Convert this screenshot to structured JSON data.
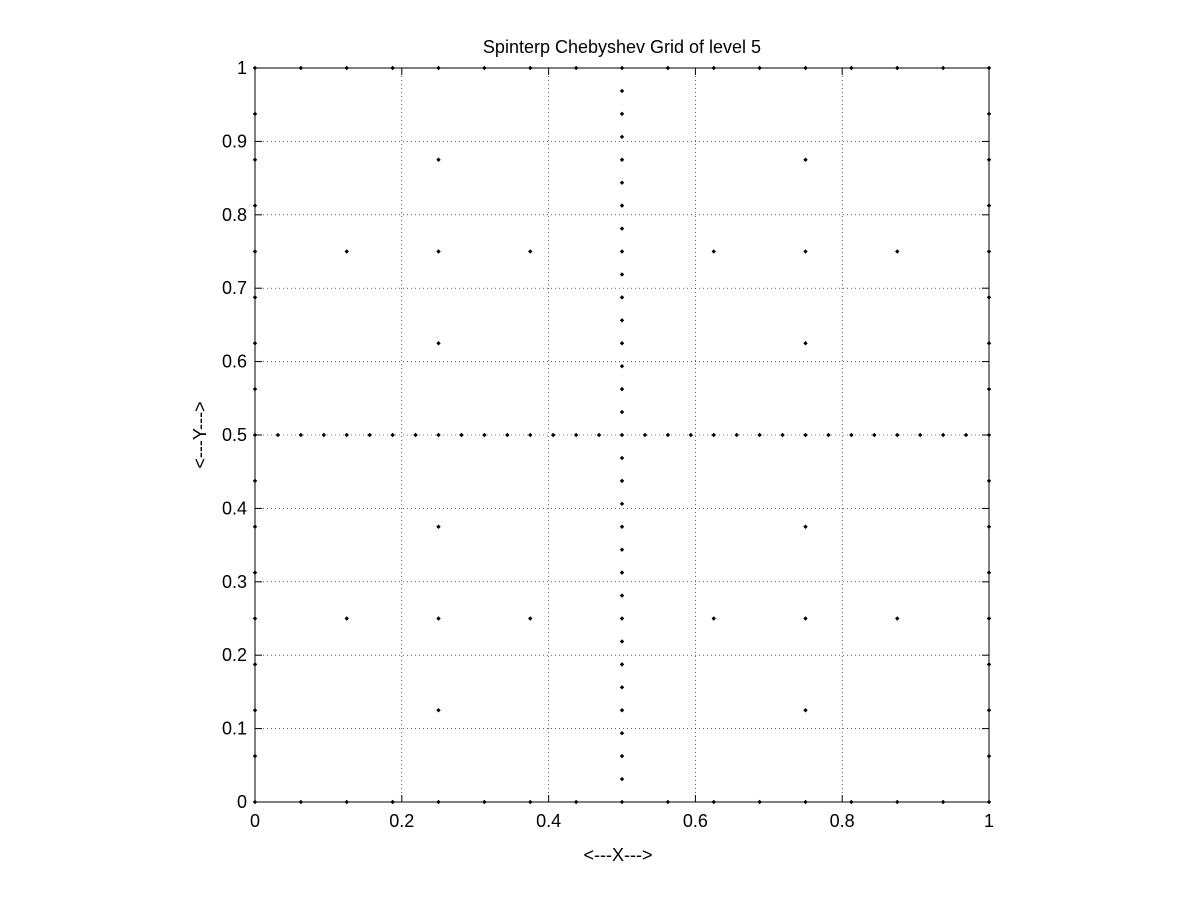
{
  "chart_data": {
    "type": "scatter",
    "title": "Spinterp Chebyshev Grid of level 5",
    "xlabel": "<---X--->",
    "ylabel": "<---Y--->",
    "xlim": [
      0,
      1
    ],
    "ylim": [
      0,
      1
    ],
    "grid": true,
    "grid_style": "dotted",
    "x_ticks": [
      0,
      0.2,
      0.4,
      0.6,
      0.8,
      1
    ],
    "x_tick_labels": [
      "0",
      "0.2",
      "0.4",
      "0.6",
      "0.8",
      "1"
    ],
    "y_ticks": [
      0,
      0.1,
      0.2,
      0.3,
      0.4,
      0.5,
      0.6,
      0.7,
      0.8,
      0.9,
      1
    ],
    "y_tick_labels": [
      "0",
      "0.1",
      "0.2",
      "0.3",
      "0.4",
      "0.5",
      "0.6",
      "0.7",
      "0.8",
      "0.9",
      "1"
    ],
    "marker_color": "#000000",
    "series": [
      {
        "points": [
          [
            0,
            0
          ],
          [
            0.0625,
            0
          ],
          [
            0.125,
            0
          ],
          [
            0.1875,
            0
          ],
          [
            0.25,
            0
          ],
          [
            0.3125,
            0
          ],
          [
            0.375,
            0
          ],
          [
            0.4375,
            0
          ],
          [
            0.5,
            0
          ],
          [
            0.5625,
            0
          ],
          [
            0.625,
            0
          ],
          [
            0.6875,
            0
          ],
          [
            0.75,
            0
          ],
          [
            0.8125,
            0
          ],
          [
            0.875,
            0
          ],
          [
            0.9375,
            0
          ],
          [
            1,
            0
          ],
          [
            0,
            1
          ],
          [
            0.0625,
            1
          ],
          [
            0.125,
            1
          ],
          [
            0.1875,
            1
          ],
          [
            0.25,
            1
          ],
          [
            0.3125,
            1
          ],
          [
            0.375,
            1
          ],
          [
            0.4375,
            1
          ],
          [
            0.5,
            1
          ],
          [
            0.5625,
            1
          ],
          [
            0.625,
            1
          ],
          [
            0.6875,
            1
          ],
          [
            0.75,
            1
          ],
          [
            0.8125,
            1
          ],
          [
            0.875,
            1
          ],
          [
            0.9375,
            1
          ],
          [
            1,
            1
          ],
          [
            0,
            0.0625
          ],
          [
            0,
            0.125
          ],
          [
            0,
            0.1875
          ],
          [
            0,
            0.25
          ],
          [
            0,
            0.3125
          ],
          [
            0,
            0.375
          ],
          [
            0,
            0.4375
          ],
          [
            0,
            0.5
          ],
          [
            0,
            0.5625
          ],
          [
            0,
            0.625
          ],
          [
            0,
            0.6875
          ],
          [
            0,
            0.75
          ],
          [
            0,
            0.8125
          ],
          [
            0,
            0.875
          ],
          [
            0,
            0.9375
          ],
          [
            1,
            0.0625
          ],
          [
            1,
            0.125
          ],
          [
            1,
            0.1875
          ],
          [
            1,
            0.25
          ],
          [
            1,
            0.3125
          ],
          [
            1,
            0.375
          ],
          [
            1,
            0.4375
          ],
          [
            1,
            0.5
          ],
          [
            1,
            0.5625
          ],
          [
            1,
            0.625
          ],
          [
            1,
            0.6875
          ],
          [
            1,
            0.75
          ],
          [
            1,
            0.8125
          ],
          [
            1,
            0.875
          ],
          [
            1,
            0.9375
          ],
          [
            0.03125,
            0.5
          ],
          [
            0.0625,
            0.5
          ],
          [
            0.09375,
            0.5
          ],
          [
            0.125,
            0.5
          ],
          [
            0.15625,
            0.5
          ],
          [
            0.1875,
            0.5
          ],
          [
            0.21875,
            0.5
          ],
          [
            0.25,
            0.5
          ],
          [
            0.28125,
            0.5
          ],
          [
            0.3125,
            0.5
          ],
          [
            0.34375,
            0.5
          ],
          [
            0.375,
            0.5
          ],
          [
            0.40625,
            0.5
          ],
          [
            0.4375,
            0.5
          ],
          [
            0.46875,
            0.5
          ],
          [
            0.5,
            0.5
          ],
          [
            0.53125,
            0.5
          ],
          [
            0.5625,
            0.5
          ],
          [
            0.59375,
            0.5
          ],
          [
            0.625,
            0.5
          ],
          [
            0.65625,
            0.5
          ],
          [
            0.6875,
            0.5
          ],
          [
            0.71875,
            0.5
          ],
          [
            0.75,
            0.5
          ],
          [
            0.78125,
            0.5
          ],
          [
            0.8125,
            0.5
          ],
          [
            0.84375,
            0.5
          ],
          [
            0.875,
            0.5
          ],
          [
            0.90625,
            0.5
          ],
          [
            0.9375,
            0.5
          ],
          [
            0.96875,
            0.5
          ],
          [
            0.5,
            0.03125
          ],
          [
            0.5,
            0.0625
          ],
          [
            0.5,
            0.09375
          ],
          [
            0.5,
            0.125
          ],
          [
            0.5,
            0.15625
          ],
          [
            0.5,
            0.1875
          ],
          [
            0.5,
            0.21875
          ],
          [
            0.5,
            0.25
          ],
          [
            0.5,
            0.28125
          ],
          [
            0.5,
            0.3125
          ],
          [
            0.5,
            0.34375
          ],
          [
            0.5,
            0.375
          ],
          [
            0.5,
            0.40625
          ],
          [
            0.5,
            0.4375
          ],
          [
            0.5,
            0.46875
          ],
          [
            0.5,
            0.53125
          ],
          [
            0.5,
            0.5625
          ],
          [
            0.5,
            0.59375
          ],
          [
            0.5,
            0.625
          ],
          [
            0.5,
            0.65625
          ],
          [
            0.5,
            0.6875
          ],
          [
            0.5,
            0.71875
          ],
          [
            0.5,
            0.75
          ],
          [
            0.5,
            0.78125
          ],
          [
            0.5,
            0.8125
          ],
          [
            0.5,
            0.84375
          ],
          [
            0.5,
            0.875
          ],
          [
            0.5,
            0.90625
          ],
          [
            0.5,
            0.9375
          ],
          [
            0.5,
            0.96875
          ],
          [
            0.25,
            0.875
          ],
          [
            0.75,
            0.875
          ],
          [
            0.125,
            0.75
          ],
          [
            0.25,
            0.75
          ],
          [
            0.375,
            0.75
          ],
          [
            0.625,
            0.75
          ],
          [
            0.75,
            0.75
          ],
          [
            0.875,
            0.75
          ],
          [
            0.25,
            0.625
          ],
          [
            0.75,
            0.625
          ],
          [
            0.25,
            0.375
          ],
          [
            0.75,
            0.375
          ],
          [
            0.125,
            0.25
          ],
          [
            0.25,
            0.25
          ],
          [
            0.375,
            0.25
          ],
          [
            0.625,
            0.25
          ],
          [
            0.75,
            0.25
          ],
          [
            0.875,
            0.25
          ],
          [
            0.25,
            0.125
          ],
          [
            0.75,
            0.125
          ]
        ]
      }
    ]
  }
}
